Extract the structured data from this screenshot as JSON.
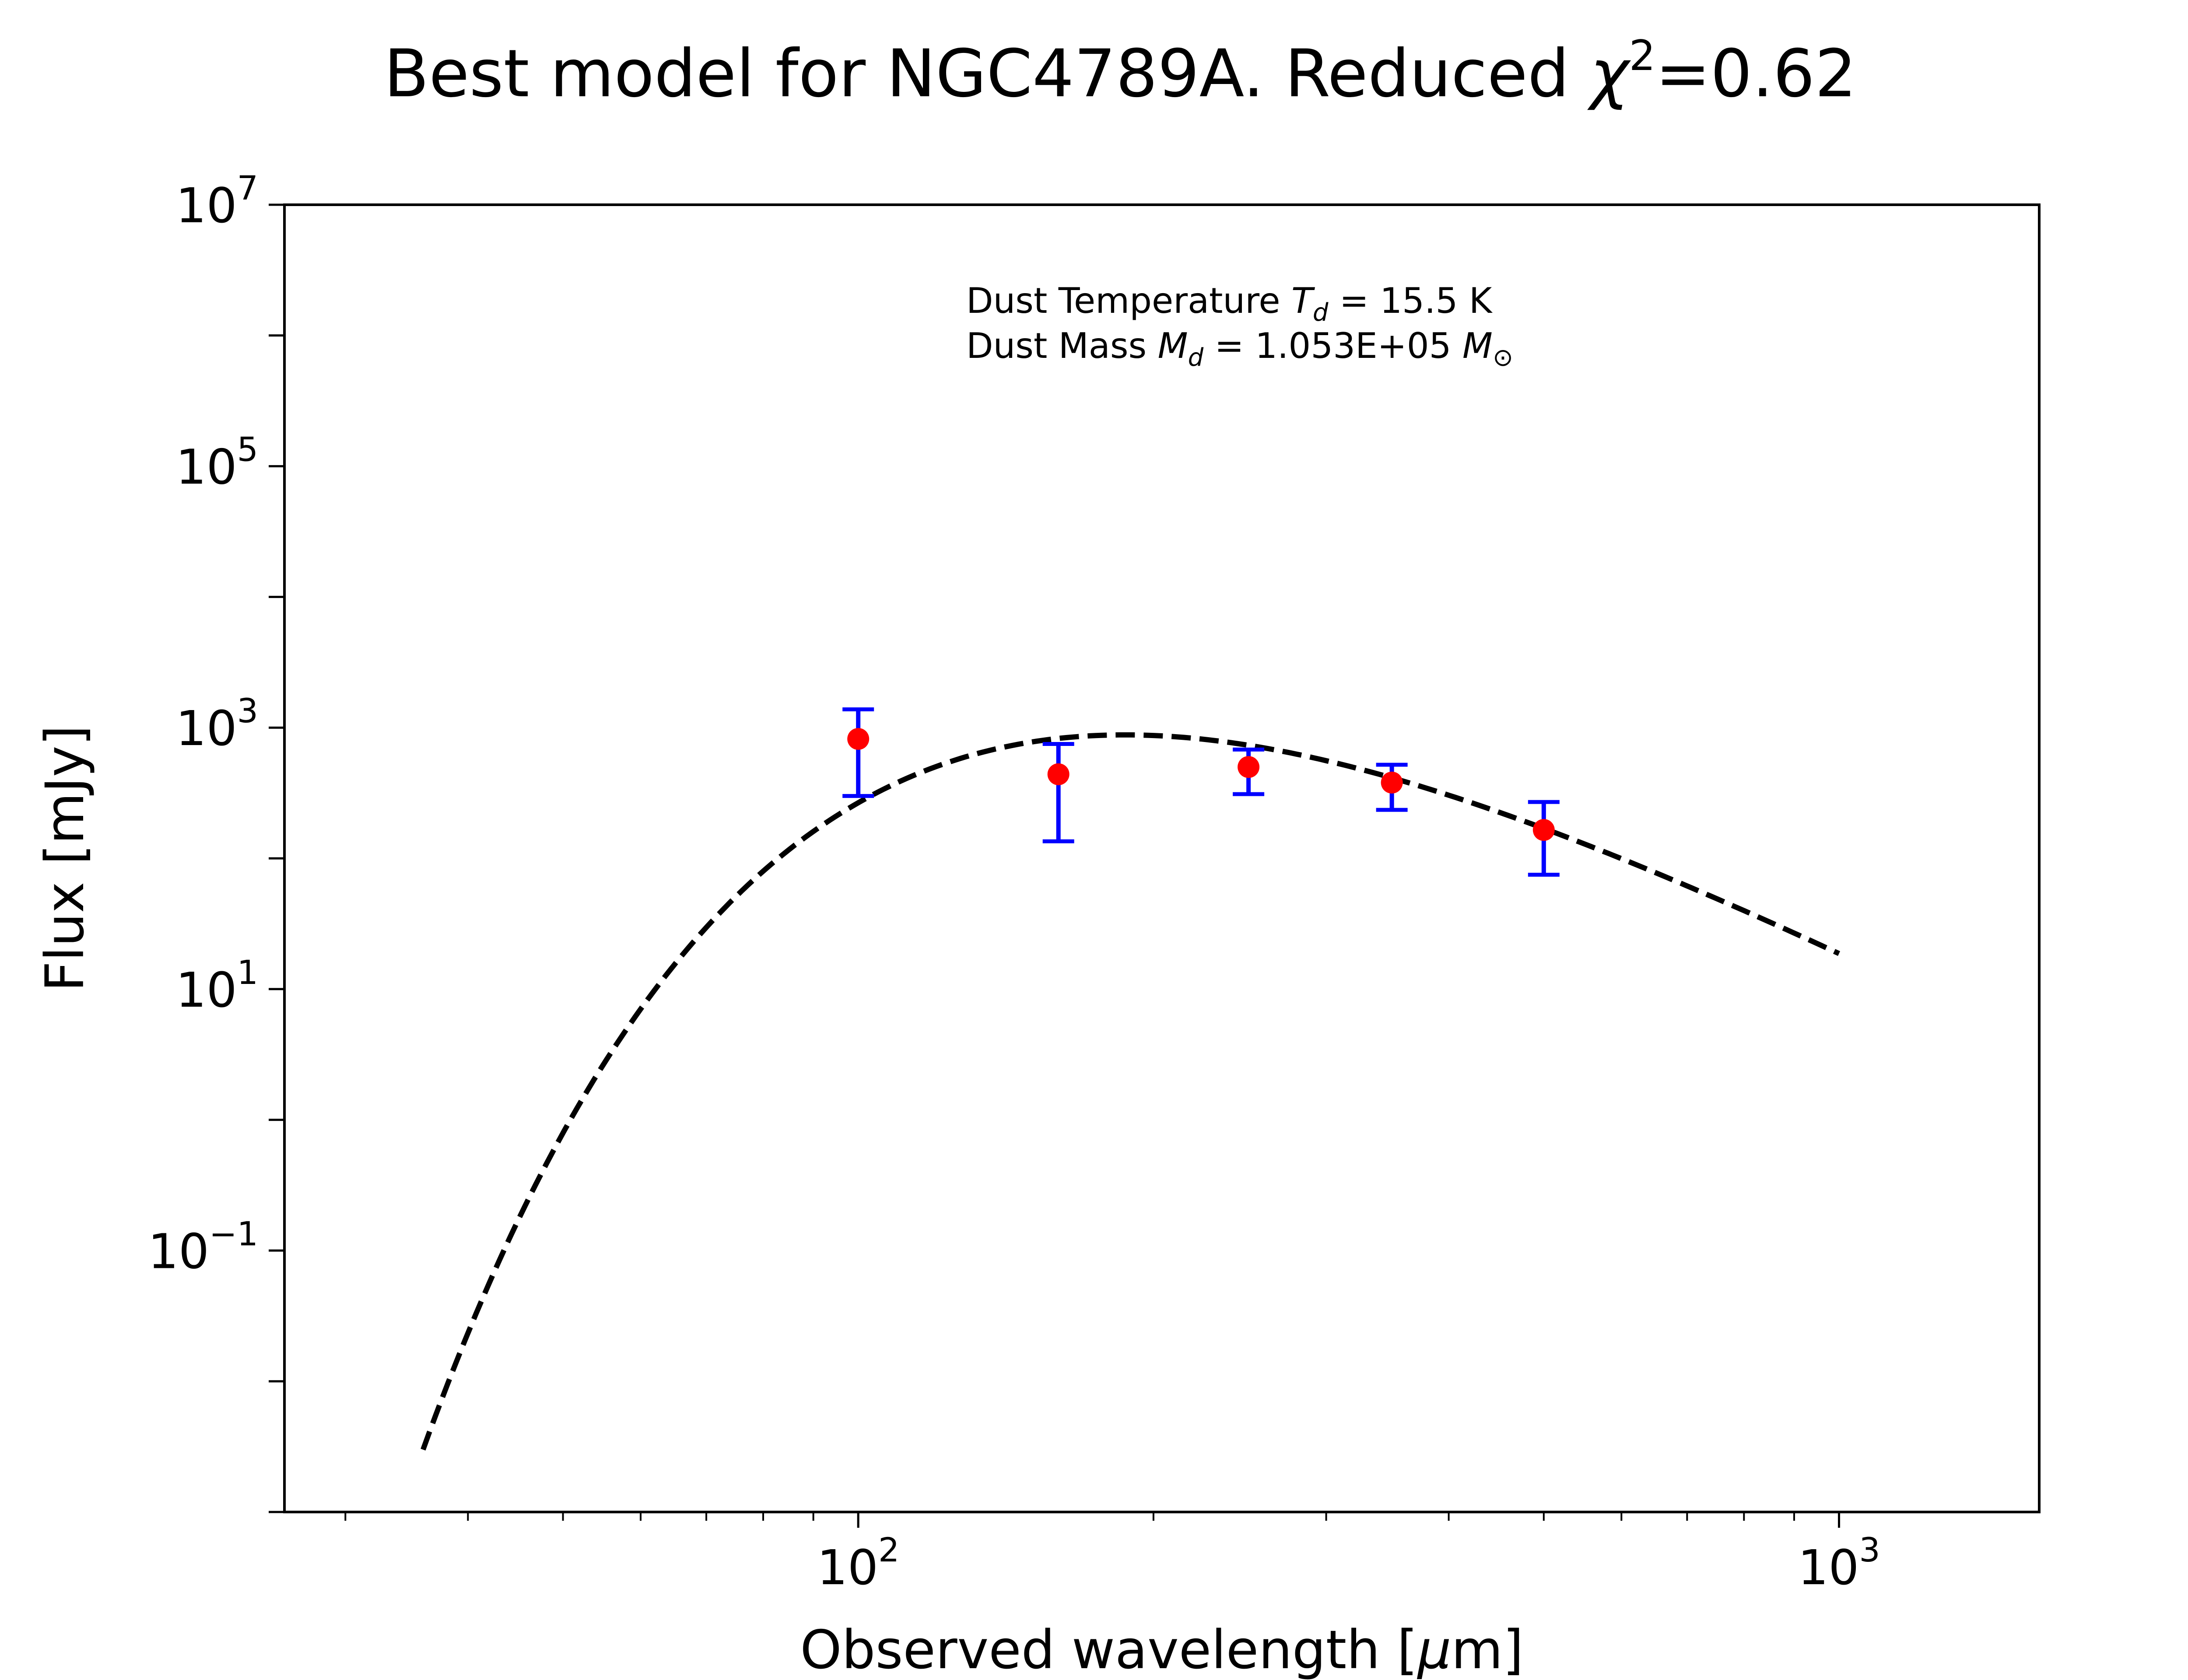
{
  "chart_data": {
    "type": "scatter",
    "title": {
      "prefix": "Best model for NGC4789A. Reduced ",
      "chi": "χ",
      "sup": "2",
      "suffix": "=0.62"
    },
    "xlabel": {
      "prefix": "Observed wavelength [",
      "mu": "μ",
      "suffix": "m]"
    },
    "ylabel": "Flux [mJy]",
    "xscale": "log",
    "yscale": "log",
    "xlim": [
      26,
      1600
    ],
    "ylim": [
      0.001,
      10000000
    ],
    "x_ticks": [
      {
        "value": 100,
        "base": "10",
        "exp": "2"
      },
      {
        "value": 1000,
        "base": "10",
        "exp": "3"
      }
    ],
    "y_ticks": [
      {
        "value": 0.1,
        "base": "10",
        "exp": "−1"
      },
      {
        "value": 10,
        "base": "10",
        "exp": "1"
      },
      {
        "value": 1000,
        "base": "10",
        "exp": "3"
      },
      {
        "value": 100000,
        "base": "10",
        "exp": "5"
      },
      {
        "value": 10000000,
        "base": "10",
        "exp": "7"
      }
    ],
    "grid": false,
    "series": [
      {
        "kind": "errorbar",
        "color": "#ff0000",
        "errorbar_color": "#0000ff",
        "points": [
          {
            "x": 100,
            "y": 820,
            "ylow": 300,
            "yhigh": 1380
          },
          {
            "x": 160,
            "y": 440,
            "ylow": 135,
            "yhigh": 750
          },
          {
            "x": 250,
            "y": 500,
            "ylow": 310,
            "yhigh": 680
          },
          {
            "x": 350,
            "y": 380,
            "ylow": 235,
            "yhigh": 520
          },
          {
            "x": 500,
            "y": 165,
            "ylow": 75,
            "yhigh": 270
          }
        ]
      },
      {
        "kind": "model",
        "style": "dashed",
        "color": "#000000",
        "model": "modified blackbody",
        "temperature_K": 15.5,
        "beta": 2,
        "x_range": [
          36,
          1000
        ]
      }
    ],
    "annotations": {
      "line1": {
        "prefix": "Dust Temperature ",
        "sym": "T",
        "sub": "d",
        "suffix": " = 15.5 K"
      },
      "line2": {
        "prefix": "Dust Mass ",
        "sym": "M",
        "sub": "d",
        "mid": " = 1.053E+05 ",
        "sym2": "M",
        "sub2": "⊙"
      }
    }
  }
}
